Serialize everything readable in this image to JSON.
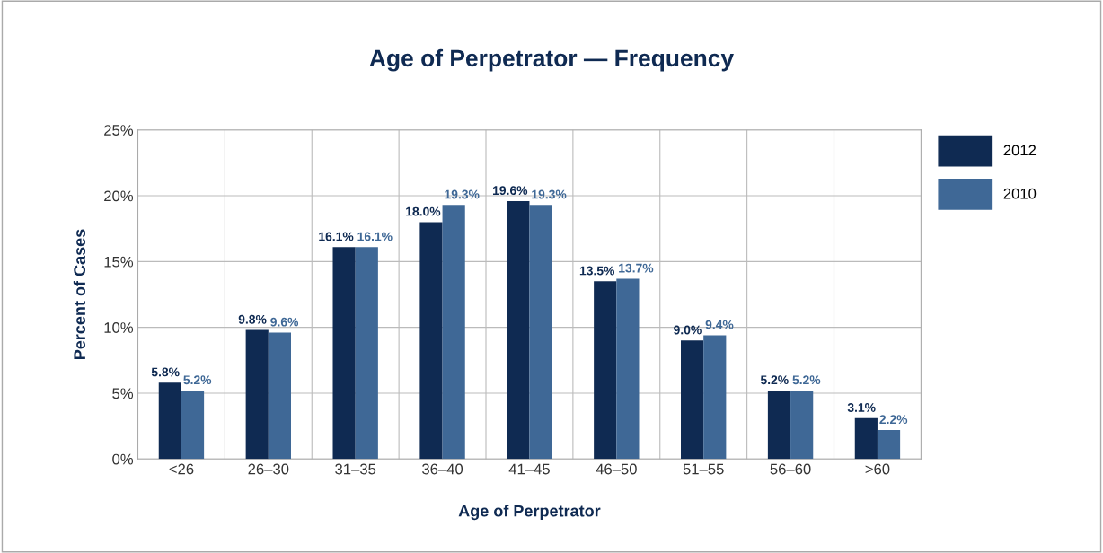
{
  "chart_data": {
    "type": "bar",
    "title": "Age of Perpetrator — Frequency",
    "xlabel": "Age of Perpetrator",
    "ylabel": "Percent of Cases",
    "categories": [
      "<26",
      "26–30",
      "31–35",
      "36–40",
      "41–45",
      "46–50",
      "51–55",
      "56–60",
      ">60"
    ],
    "series": [
      {
        "name": "2012",
        "color": "#0f2a52",
        "values": [
          5.8,
          9.8,
          16.1,
          18.0,
          19.6,
          13.5,
          9.0,
          5.2,
          3.1
        ],
        "value_labels": [
          "5.8%",
          "9.8%",
          "16.1%",
          "18.0%",
          "19.6%",
          "13.5%",
          "9.0%",
          "5.2%",
          "3.1%"
        ]
      },
      {
        "name": "2010",
        "color": "#3f6896",
        "values": [
          5.2,
          9.6,
          16.1,
          19.3,
          19.3,
          13.7,
          9.4,
          5.2,
          2.2
        ],
        "value_labels": [
          "5.2%",
          "9.6%",
          "16.1%",
          "19.3%",
          "19.3%",
          "13.7%",
          "9.4%",
          "5.2%",
          "2.2%"
        ]
      }
    ],
    "ylim": [
      0,
      25
    ],
    "yticks": [
      {
        "value": 0,
        "label": "0%"
      },
      {
        "value": 5,
        "label": "5%"
      },
      {
        "value": 10,
        "label": "10%"
      },
      {
        "value": 15,
        "label": "15%"
      },
      {
        "value": 20,
        "label": "20%"
      },
      {
        "value": 25,
        "label": "25%"
      }
    ],
    "grid": true,
    "legend": "right"
  }
}
